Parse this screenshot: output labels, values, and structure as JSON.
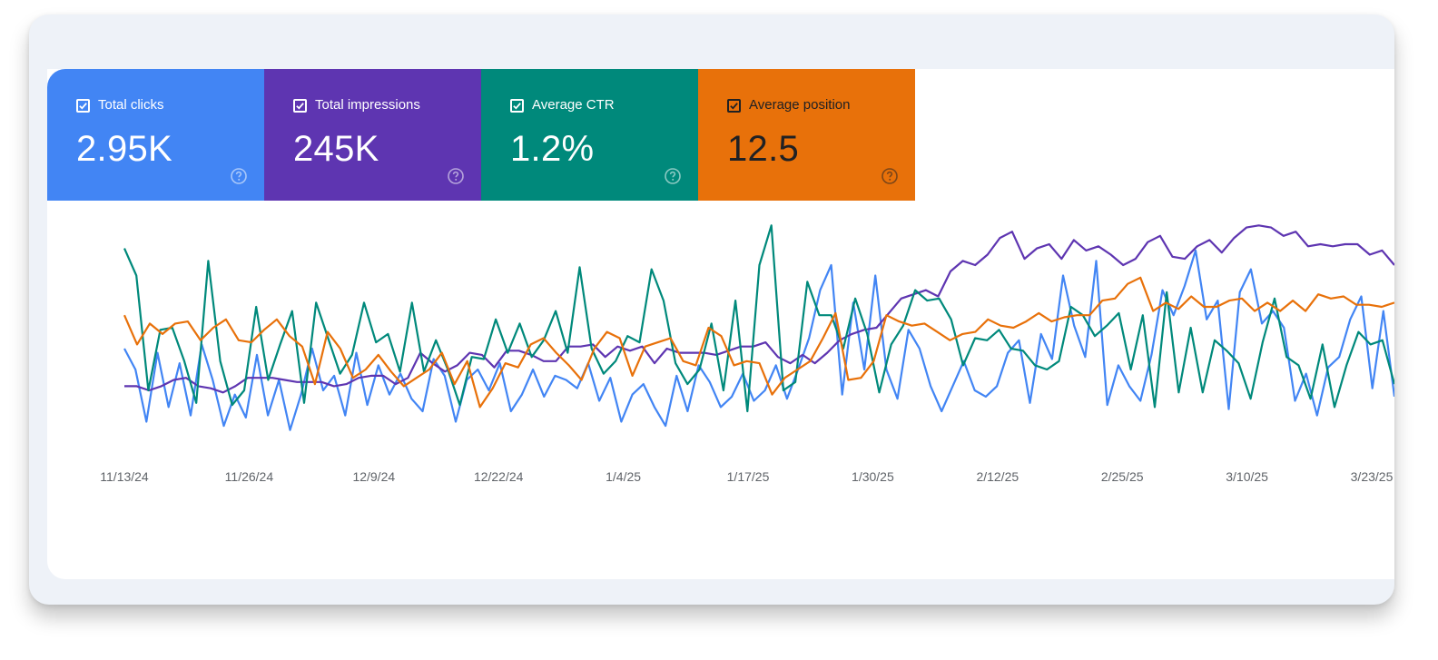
{
  "metrics": [
    {
      "id": "clicks",
      "label": "Total clicks",
      "value": "2.95K",
      "checked": true,
      "color": "#4285f4",
      "text_color": "#ffffff",
      "help_icon": "help-circle-icon"
    },
    {
      "id": "impressions",
      "label": "Total impressions",
      "value": "245K",
      "checked": true,
      "color": "#5e35b1",
      "text_color": "#ffffff",
      "help_icon": "help-circle-icon"
    },
    {
      "id": "ctr",
      "label": "Average CTR",
      "value": "1.2%",
      "checked": true,
      "color": "#00897b",
      "text_color": "#ffffff",
      "help_icon": "help-circle-icon"
    },
    {
      "id": "position",
      "label": "Average position",
      "value": "12.5",
      "checked": true,
      "color": "#e8710a",
      "text_color": "#202124",
      "help_icon": "help-circle-icon"
    }
  ],
  "chart_data": {
    "type": "line",
    "x_tick_labels": [
      "11/13/24",
      "11/26/24",
      "12/9/24",
      "12/22/24",
      "1/4/25",
      "1/17/25",
      "1/30/25",
      "2/12/25",
      "2/25/25",
      "3/10/25",
      "3/23/25"
    ],
    "x_tick_days": [
      0,
      13,
      26,
      39,
      52,
      65,
      78,
      91,
      104,
      117,
      130
    ],
    "x_range_days": [
      0,
      130
    ],
    "y_range": [
      0,
      100
    ],
    "normalized_per_series": true,
    "grid": false,
    "legend": "none",
    "series": [
      {
        "metric": "clicks",
        "color": "#4285f4",
        "values": [
          40,
          30,
          5,
          38,
          12,
          33,
          8,
          42,
          25,
          3,
          18,
          7,
          37,
          8,
          25,
          1,
          18,
          40,
          20,
          27,
          8,
          38,
          13,
          32,
          18,
          28,
          16,
          10,
          35,
          27,
          5,
          25,
          30,
          20,
          33,
          10,
          18,
          30,
          17,
          27,
          25,
          21,
          33,
          15,
          26,
          5,
          18,
          23,
          12,
          3,
          27,
          10,
          32,
          24,
          12,
          17,
          28,
          15,
          20,
          32,
          16,
          30,
          45,
          68,
          80,
          18,
          62,
          30,
          75,
          30,
          16,
          49,
          40,
          22,
          10,
          22,
          34,
          20,
          17,
          22,
          38,
          44,
          14,
          47,
          35,
          75,
          51,
          36,
          82,
          13,
          32,
          22,
          15,
          37,
          68,
          56,
          70,
          87,
          54,
          63,
          11,
          67,
          78,
          52,
          58,
          50,
          15,
          28,
          8,
          31,
          36,
          54,
          65,
          21,
          58,
          17
        ]
      },
      {
        "metric": "impressions",
        "color": "#5e35b1",
        "values": [
          22,
          22,
          20,
          22,
          25,
          26,
          22,
          21,
          19,
          22,
          26,
          26,
          26,
          25,
          24,
          24,
          24,
          22,
          23,
          26,
          27,
          27,
          23,
          26,
          38,
          33,
          29,
          32,
          38,
          37,
          31,
          39,
          39,
          37,
          34,
          34,
          41,
          41,
          42,
          36,
          41,
          39,
          41,
          33,
          40,
          38,
          38,
          38,
          37,
          39,
          41,
          41,
          43,
          36,
          33,
          37,
          33,
          38,
          44,
          47,
          49,
          50,
          57,
          64,
          66,
          68,
          65,
          77,
          82,
          80,
          85,
          93,
          96,
          83,
          88,
          90,
          83,
          92,
          87,
          89,
          85,
          80,
          83,
          91,
          94,
          84,
          83,
          89,
          92,
          86,
          93,
          98,
          99,
          98,
          94,
          96,
          89,
          90,
          89,
          90,
          90,
          85,
          87,
          80
        ]
      },
      {
        "metric": "ctr",
        "color": "#00897b",
        "values": [
          88,
          75,
          20,
          49,
          50,
          34,
          14,
          82,
          34,
          13,
          20,
          60,
          25,
          42,
          58,
          14,
          62,
          45,
          28,
          37,
          62,
          43,
          47,
          29,
          62,
          29,
          44,
          30,
          13,
          36,
          35,
          54,
          38,
          52,
          36,
          44,
          58,
          38,
          79,
          40,
          28,
          34,
          46,
          43,
          78,
          63,
          33,
          23,
          30,
          52,
          20,
          63,
          10,
          80,
          99,
          20,
          24,
          72,
          56,
          56,
          40,
          64,
          47,
          19,
          42,
          51,
          68,
          63,
          64,
          54,
          32,
          45,
          44,
          49,
          40,
          39,
          32,
          30,
          34,
          60,
          56,
          46,
          51,
          57,
          30,
          56,
          12,
          67,
          19,
          50,
          19,
          44,
          39,
          33,
          16,
          43,
          64,
          36,
          32,
          16,
          42,
          12,
          32,
          48,
          42,
          44,
          23
        ]
      },
      {
        "metric": "position",
        "color": "#e8710a",
        "values": [
          56,
          42,
          52,
          47,
          52,
          53,
          44,
          50,
          54,
          44,
          43,
          49,
          54,
          46,
          41,
          23,
          48,
          40,
          26,
          30,
          37,
          29,
          22,
          26,
          30,
          38,
          23,
          34,
          12,
          21,
          33,
          31,
          42,
          45,
          38,
          32,
          25,
          40,
          48,
          45,
          27,
          41,
          43,
          45,
          34,
          32,
          50,
          46,
          32,
          34,
          33,
          18,
          26,
          30,
          34,
          45,
          57,
          25,
          26,
          34,
          56,
          53,
          51,
          52,
          48,
          44,
          47,
          48,
          54,
          51,
          50,
          53,
          57,
          53,
          55,
          56,
          56,
          63,
          64,
          71,
          74,
          58,
          62,
          59,
          65,
          60,
          60,
          63,
          64,
          58,
          62,
          58,
          63,
          58,
          66,
          64,
          65,
          61,
          61,
          60,
          62
        ]
      }
    ]
  }
}
